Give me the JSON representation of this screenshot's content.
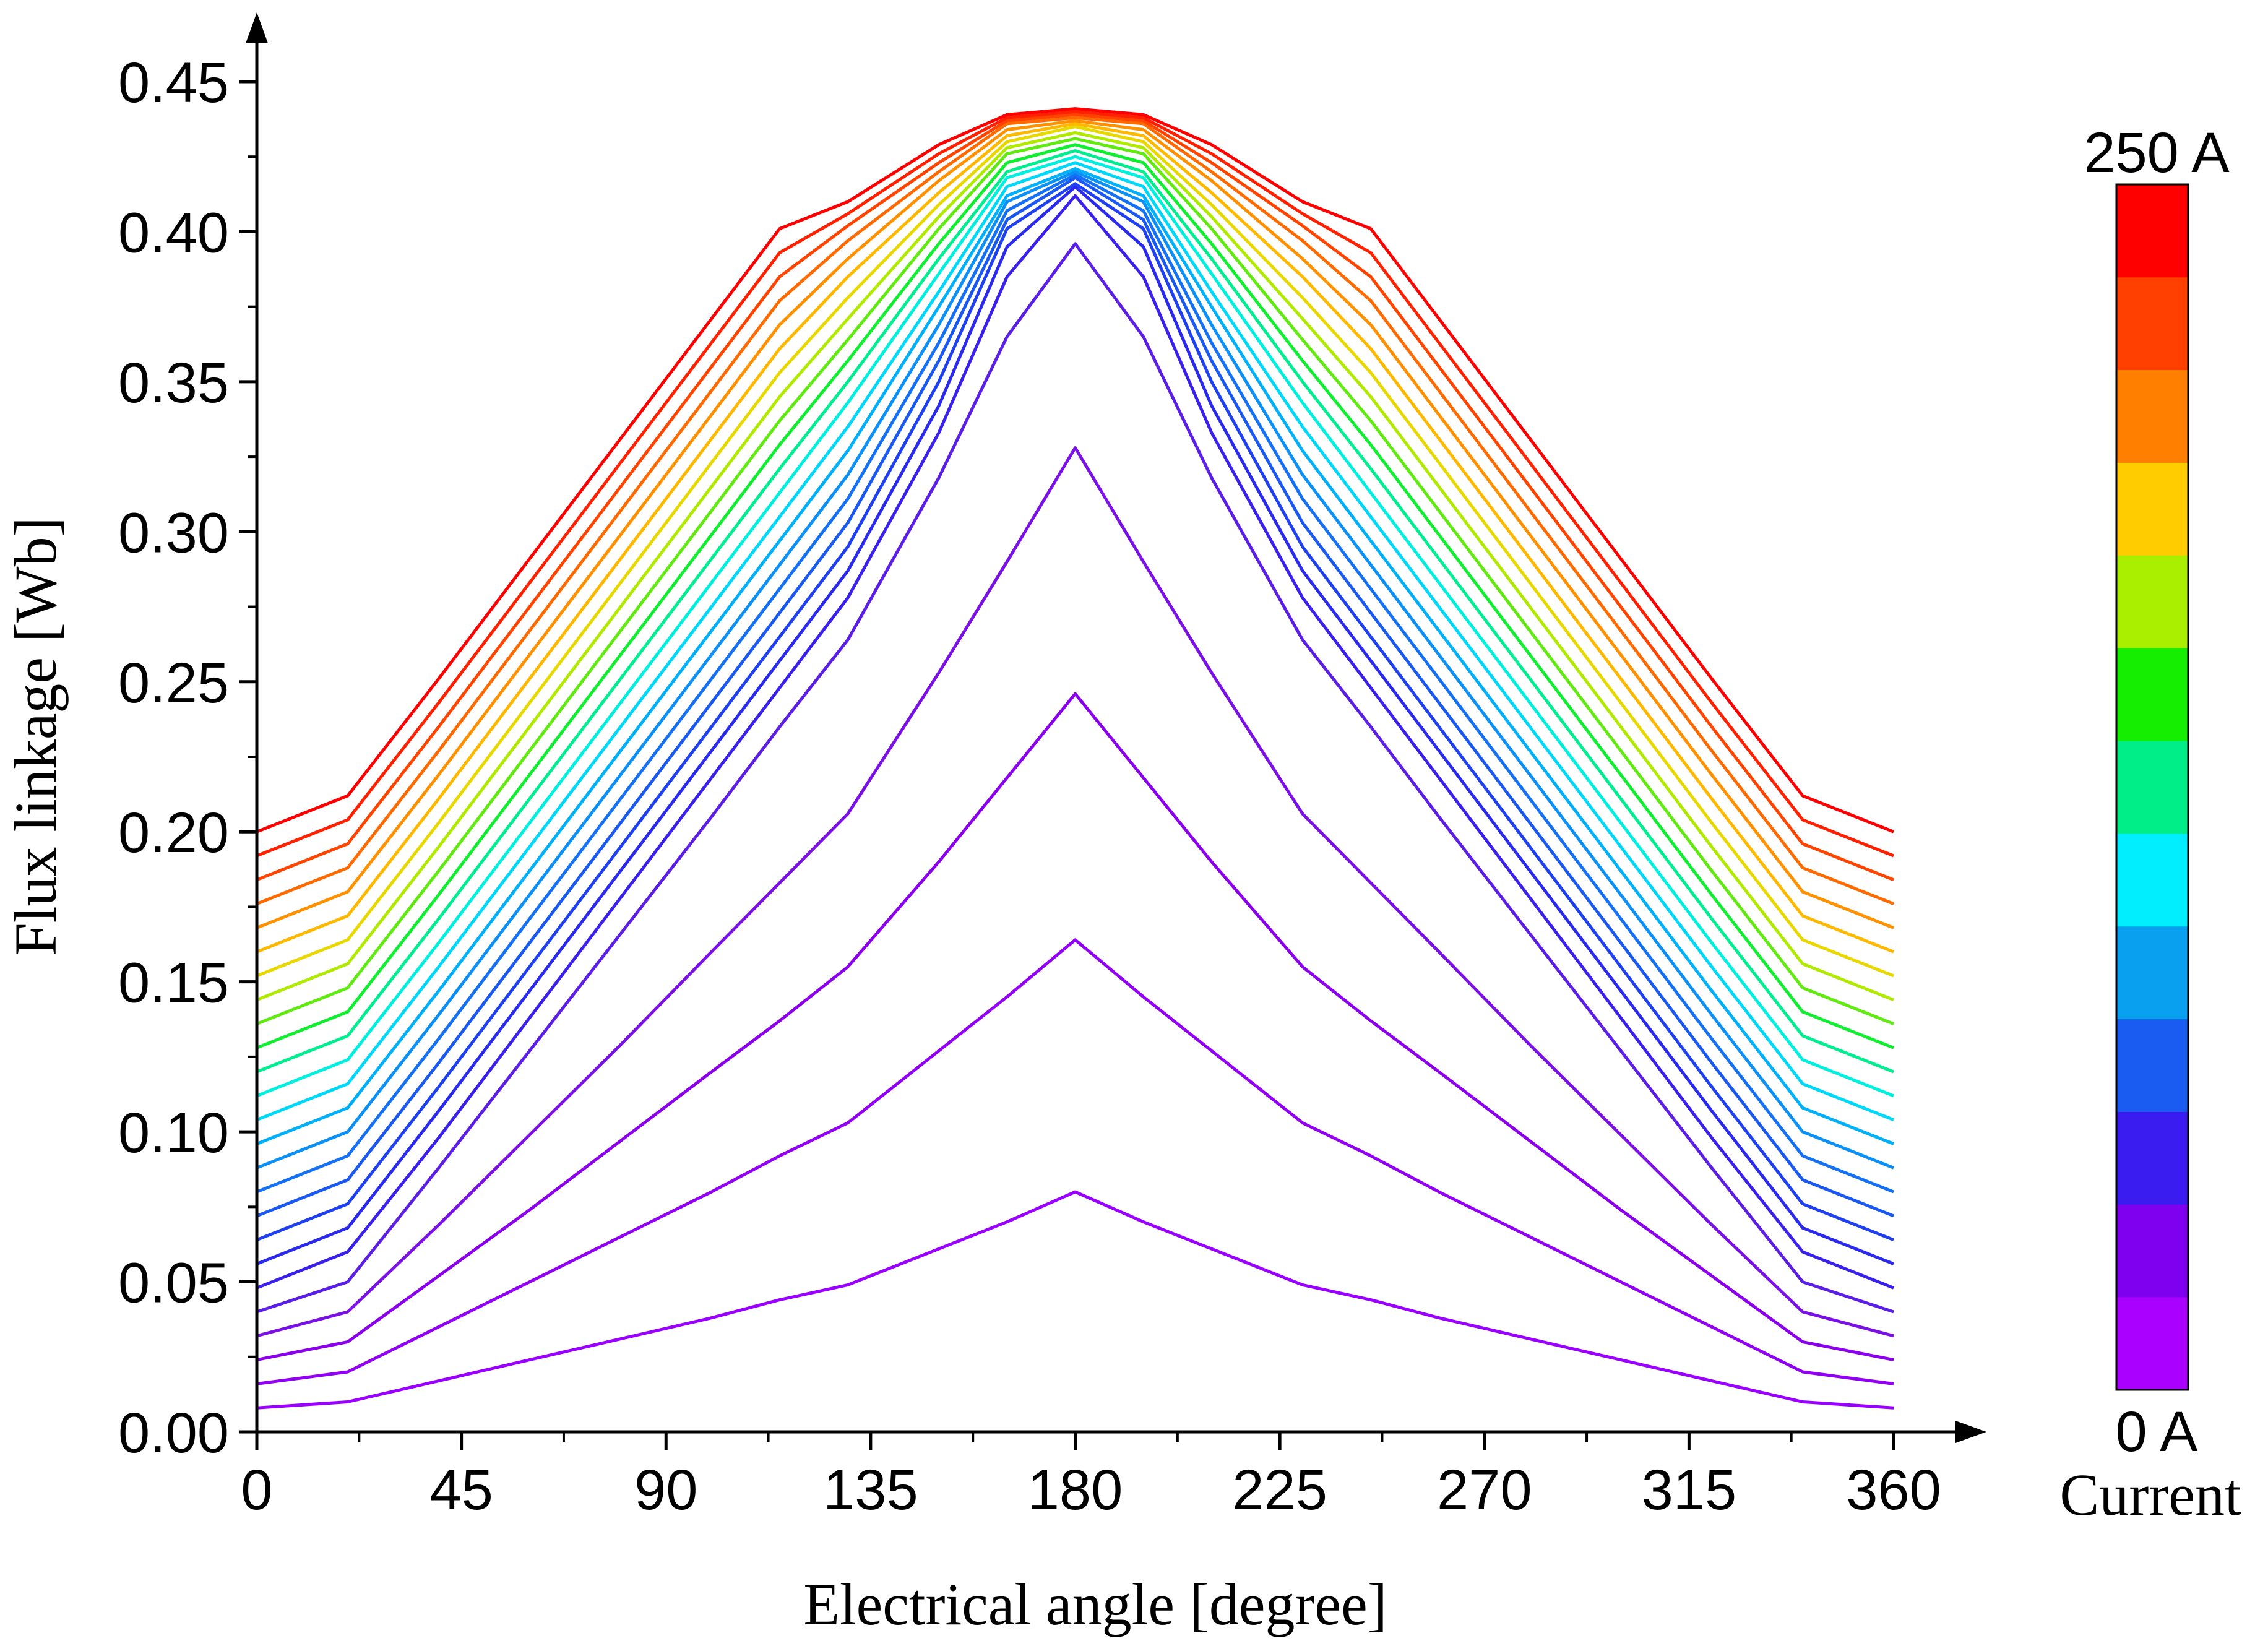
{
  "chart_data": {
    "type": "line",
    "xlabel": "Electrical angle [degree]",
    "ylabel": "Flux linkage [Wb]",
    "xlim": [
      0,
      360
    ],
    "ylim": [
      0,
      0.45
    ],
    "x_ticks": [
      0,
      45,
      90,
      135,
      180,
      225,
      270,
      315,
      360
    ],
    "y_ticks": [
      "0.00",
      "0.05",
      "0.10",
      "0.15",
      "0.20",
      "0.25",
      "0.30",
      "0.35",
      "0.40",
      "0.45"
    ],
    "x_tick_labels": [
      "0",
      "45",
      "90",
      "135",
      "180",
      "225",
      "270",
      "315",
      "360"
    ],
    "grid": false,
    "x": [
      0,
      20,
      40,
      60,
      80,
      100,
      115,
      130,
      150,
      165,
      180,
      195,
      210,
      230,
      245,
      260,
      280,
      300,
      320,
      340,
      360
    ],
    "series": [
      {
        "current_A": 10,
        "color": "#9900ff",
        "values": [
          0.008,
          0.01,
          0.017,
          0.024,
          0.031,
          0.038,
          0.044,
          0.049,
          0.061,
          0.07,
          0.08,
          0.07,
          0.061,
          0.049,
          0.044,
          0.038,
          0.031,
          0.024,
          0.017,
          0.01,
          0.008
        ]
      },
      {
        "current_A": 20,
        "color": "#9200f4",
        "values": [
          0.016,
          0.02,
          0.035,
          0.05,
          0.065,
          0.08,
          0.092,
          0.103,
          0.127,
          0.145,
          0.164,
          0.145,
          0.127,
          0.103,
          0.092,
          0.08,
          0.065,
          0.05,
          0.035,
          0.02,
          0.016
        ]
      },
      {
        "current_A": 30,
        "color": "#8a00ec",
        "values": [
          0.024,
          0.03,
          0.052,
          0.074,
          0.097,
          0.12,
          0.137,
          0.155,
          0.19,
          0.218,
          0.246,
          0.218,
          0.19,
          0.155,
          0.137,
          0.12,
          0.097,
          0.074,
          0.052,
          0.03,
          0.024
        ]
      },
      {
        "current_A": 40,
        "color": "#7a10e6",
        "values": [
          0.032,
          0.04,
          0.069,
          0.099,
          0.129,
          0.16,
          0.183,
          0.206,
          0.253,
          0.29,
          0.328,
          0.29,
          0.253,
          0.206,
          0.183,
          0.16,
          0.129,
          0.099,
          0.069,
          0.04,
          0.032
        ]
      },
      {
        "current_A": 50,
        "color": "#5a1ee6",
        "values": [
          0.04,
          0.05,
          0.088,
          0.127,
          0.166,
          0.205,
          0.235,
          0.264,
          0.318,
          0.365,
          0.396,
          0.365,
          0.318,
          0.264,
          0.235,
          0.205,
          0.166,
          0.127,
          0.088,
          0.05,
          0.04
        ]
      },
      {
        "current_A": 60,
        "color": "#3a20ec",
        "values": [
          0.048,
          0.06,
          0.098,
          0.138,
          0.178,
          0.218,
          0.248,
          0.278,
          0.333,
          0.385,
          0.412,
          0.385,
          0.333,
          0.278,
          0.248,
          0.218,
          0.178,
          0.138,
          0.098,
          0.06,
          0.048
        ]
      },
      {
        "current_A": 70,
        "color": "#2a2aee",
        "values": [
          0.056,
          0.068,
          0.107,
          0.147,
          0.187,
          0.227,
          0.257,
          0.287,
          0.342,
          0.395,
          0.415,
          0.395,
          0.342,
          0.287,
          0.257,
          0.227,
          0.187,
          0.147,
          0.107,
          0.068,
          0.056
        ]
      },
      {
        "current_A": 80,
        "color": "#1e40f0",
        "values": [
          0.064,
          0.076,
          0.115,
          0.155,
          0.195,
          0.235,
          0.265,
          0.295,
          0.35,
          0.401,
          0.416,
          0.401,
          0.35,
          0.295,
          0.265,
          0.235,
          0.195,
          0.155,
          0.115,
          0.076,
          0.064
        ]
      },
      {
        "current_A": 90,
        "color": "#1a58f2",
        "values": [
          0.072,
          0.084,
          0.123,
          0.163,
          0.203,
          0.243,
          0.273,
          0.303,
          0.357,
          0.404,
          0.418,
          0.404,
          0.357,
          0.303,
          0.273,
          0.243,
          0.203,
          0.163,
          0.123,
          0.084,
          0.072
        ]
      },
      {
        "current_A": 100,
        "color": "#1470f4",
        "values": [
          0.08,
          0.092,
          0.131,
          0.171,
          0.211,
          0.251,
          0.281,
          0.311,
          0.363,
          0.407,
          0.419,
          0.407,
          0.363,
          0.311,
          0.281,
          0.251,
          0.211,
          0.171,
          0.131,
          0.092,
          0.08
        ]
      },
      {
        "current_A": 110,
        "color": "#0a90f6",
        "values": [
          0.088,
          0.1,
          0.139,
          0.179,
          0.219,
          0.259,
          0.289,
          0.319,
          0.369,
          0.41,
          0.42,
          0.41,
          0.369,
          0.319,
          0.289,
          0.259,
          0.219,
          0.179,
          0.139,
          0.1,
          0.088
        ]
      },
      {
        "current_A": 120,
        "color": "#00b0f8",
        "values": [
          0.096,
          0.108,
          0.147,
          0.187,
          0.227,
          0.267,
          0.297,
          0.327,
          0.375,
          0.412,
          0.421,
          0.412,
          0.375,
          0.327,
          0.297,
          0.267,
          0.227,
          0.187,
          0.147,
          0.108,
          0.096
        ]
      },
      {
        "current_A": 130,
        "color": "#00d8fa",
        "values": [
          0.104,
          0.116,
          0.155,
          0.195,
          0.235,
          0.275,
          0.305,
          0.335,
          0.38,
          0.415,
          0.423,
          0.415,
          0.38,
          0.335,
          0.305,
          0.275,
          0.235,
          0.195,
          0.155,
          0.116,
          0.104
        ]
      },
      {
        "current_A": 140,
        "color": "#00f0e0",
        "values": [
          0.112,
          0.124,
          0.163,
          0.203,
          0.243,
          0.283,
          0.313,
          0.343,
          0.386,
          0.418,
          0.425,
          0.418,
          0.386,
          0.343,
          0.313,
          0.283,
          0.243,
          0.203,
          0.163,
          0.124,
          0.112
        ]
      },
      {
        "current_A": 150,
        "color": "#00ee90",
        "values": [
          0.12,
          0.132,
          0.171,
          0.211,
          0.251,
          0.291,
          0.321,
          0.35,
          0.391,
          0.42,
          0.427,
          0.42,
          0.391,
          0.35,
          0.321,
          0.291,
          0.251,
          0.211,
          0.171,
          0.132,
          0.12
        ]
      },
      {
        "current_A": 160,
        "color": "#10ee30",
        "values": [
          0.128,
          0.14,
          0.179,
          0.219,
          0.259,
          0.299,
          0.329,
          0.357,
          0.396,
          0.423,
          0.429,
          0.423,
          0.396,
          0.357,
          0.329,
          0.299,
          0.259,
          0.219,
          0.179,
          0.14,
          0.128
        ]
      },
      {
        "current_A": 170,
        "color": "#60ea10",
        "values": [
          0.136,
          0.148,
          0.187,
          0.227,
          0.267,
          0.307,
          0.337,
          0.364,
          0.401,
          0.426,
          0.431,
          0.426,
          0.401,
          0.364,
          0.337,
          0.307,
          0.267,
          0.227,
          0.187,
          0.148,
          0.136
        ]
      },
      {
        "current_A": 180,
        "color": "#b0ea00",
        "values": [
          0.144,
          0.156,
          0.195,
          0.235,
          0.275,
          0.315,
          0.345,
          0.371,
          0.405,
          0.428,
          0.433,
          0.428,
          0.405,
          0.371,
          0.345,
          0.315,
          0.275,
          0.235,
          0.195,
          0.156,
          0.144
        ]
      },
      {
        "current_A": 190,
        "color": "#e8d800",
        "values": [
          0.152,
          0.164,
          0.203,
          0.243,
          0.283,
          0.323,
          0.353,
          0.378,
          0.409,
          0.43,
          0.435,
          0.43,
          0.409,
          0.378,
          0.353,
          0.323,
          0.283,
          0.243,
          0.203,
          0.164,
          0.152
        ]
      },
      {
        "current_A": 200,
        "color": "#ffb800",
        "values": [
          0.16,
          0.172,
          0.211,
          0.251,
          0.291,
          0.331,
          0.361,
          0.385,
          0.413,
          0.432,
          0.436,
          0.432,
          0.413,
          0.385,
          0.361,
          0.331,
          0.291,
          0.251,
          0.211,
          0.172,
          0.16
        ]
      },
      {
        "current_A": 210,
        "color": "#ff9000",
        "values": [
          0.168,
          0.18,
          0.219,
          0.259,
          0.299,
          0.339,
          0.369,
          0.391,
          0.417,
          0.434,
          0.437,
          0.434,
          0.417,
          0.391,
          0.369,
          0.339,
          0.299,
          0.259,
          0.219,
          0.18,
          0.168
        ]
      },
      {
        "current_A": 220,
        "color": "#ff6a00",
        "values": [
          0.176,
          0.188,
          0.227,
          0.267,
          0.307,
          0.347,
          0.377,
          0.397,
          0.42,
          0.436,
          0.438,
          0.436,
          0.42,
          0.397,
          0.377,
          0.347,
          0.307,
          0.267,
          0.227,
          0.188,
          0.176
        ]
      },
      {
        "current_A": 230,
        "color": "#ff4400",
        "values": [
          0.184,
          0.196,
          0.235,
          0.275,
          0.315,
          0.355,
          0.385,
          0.402,
          0.423,
          0.437,
          0.439,
          0.437,
          0.423,
          0.402,
          0.385,
          0.355,
          0.315,
          0.275,
          0.235,
          0.196,
          0.184
        ]
      },
      {
        "current_A": 240,
        "color": "#ff2000",
        "values": [
          0.192,
          0.204,
          0.243,
          0.283,
          0.323,
          0.363,
          0.393,
          0.406,
          0.426,
          0.438,
          0.44,
          0.438,
          0.426,
          0.406,
          0.393,
          0.363,
          0.323,
          0.283,
          0.243,
          0.204,
          0.192
        ]
      },
      {
        "current_A": 250,
        "color": "#ff0000",
        "values": [
          0.2,
          0.212,
          0.251,
          0.291,
          0.331,
          0.371,
          0.401,
          0.41,
          0.429,
          0.439,
          0.441,
          0.439,
          0.429,
          0.41,
          0.401,
          0.371,
          0.331,
          0.291,
          0.251,
          0.212,
          0.2
        ]
      }
    ],
    "colorbar": {
      "title": "Current",
      "max_label": "250 A",
      "min_label": "0 A",
      "colors": [
        "#aa00ff",
        "#7f00ee",
        "#3a1cf0",
        "#1a5cf2",
        "#0aa0f0",
        "#00eeff",
        "#00ee88",
        "#16ee00",
        "#aaee00",
        "#ffcc00",
        "#ff7f00",
        "#ff4000",
        "#ff0000"
      ]
    }
  }
}
